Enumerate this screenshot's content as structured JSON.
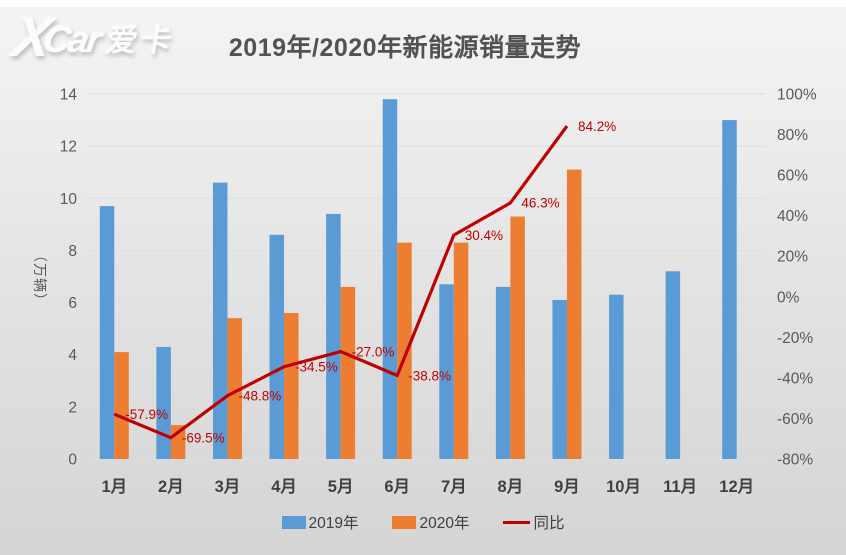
{
  "logo": {
    "text_x": "X",
    "text_car": "Car",
    "text_cn": "爱卡"
  },
  "title": "2019年/2020年新能源销量走势",
  "chart_data": {
    "type": "bar",
    "subtype": "grouped bars + yoy line on secondary axis",
    "title": "2019年/2020年新能源销量走势",
    "categories": [
      "1月",
      "2月",
      "3月",
      "4月",
      "5月",
      "6月",
      "7月",
      "8月",
      "9月",
      "10月",
      "11月",
      "12月"
    ],
    "series": [
      {
        "name": "2019年",
        "type": "bar",
        "axis": "left",
        "color": "#5B9BD5",
        "values": [
          9.7,
          4.3,
          10.6,
          8.6,
          9.4,
          13.8,
          6.7,
          6.6,
          6.1,
          6.3,
          7.2,
          13.0
        ]
      },
      {
        "name": "2020年",
        "type": "bar",
        "axis": "left",
        "color": "#ED7D31",
        "values": [
          4.1,
          1.3,
          5.4,
          5.6,
          6.6,
          8.3,
          8.3,
          9.3,
          11.1,
          null,
          null,
          null
        ]
      },
      {
        "name": "同比",
        "type": "line",
        "axis": "right",
        "color": "#C00000",
        "values": [
          -57.9,
          -69.5,
          -48.8,
          -34.5,
          -27.0,
          -38.8,
          30.4,
          46.3,
          84.2,
          null,
          null,
          null
        ],
        "labels": [
          "-57.9%",
          "-69.5%",
          "-48.8%",
          "-34.5%",
          "-27.0%",
          "-38.8%",
          "30.4%",
          "46.3%",
          "84.2%",
          null,
          null,
          null
        ]
      }
    ],
    "left_axis": {
      "title": "（万辆）",
      "min": 0,
      "max": 14,
      "tick_step": 2,
      "ticks": [
        "0",
        "2",
        "4",
        "6",
        "8",
        "10",
        "12",
        "14"
      ]
    },
    "right_axis": {
      "min": -80,
      "max": 100,
      "tick_step": 20,
      "ticks": [
        "-80%",
        "-60%",
        "-40%",
        "-20%",
        "0%",
        "20%",
        "40%",
        "60%",
        "80%",
        "100%"
      ]
    },
    "grid": true,
    "legend_position": "bottom",
    "legend": [
      "2019年",
      "2020年",
      "同比"
    ]
  },
  "colors": {
    "bar_2019": "#5B9BD5",
    "bar_2020": "#ED7D31",
    "yoy_line": "#C00000",
    "axis_text": "#595959",
    "month_text": "#404040",
    "title_text": "#525252",
    "gridline": "#dedede"
  }
}
